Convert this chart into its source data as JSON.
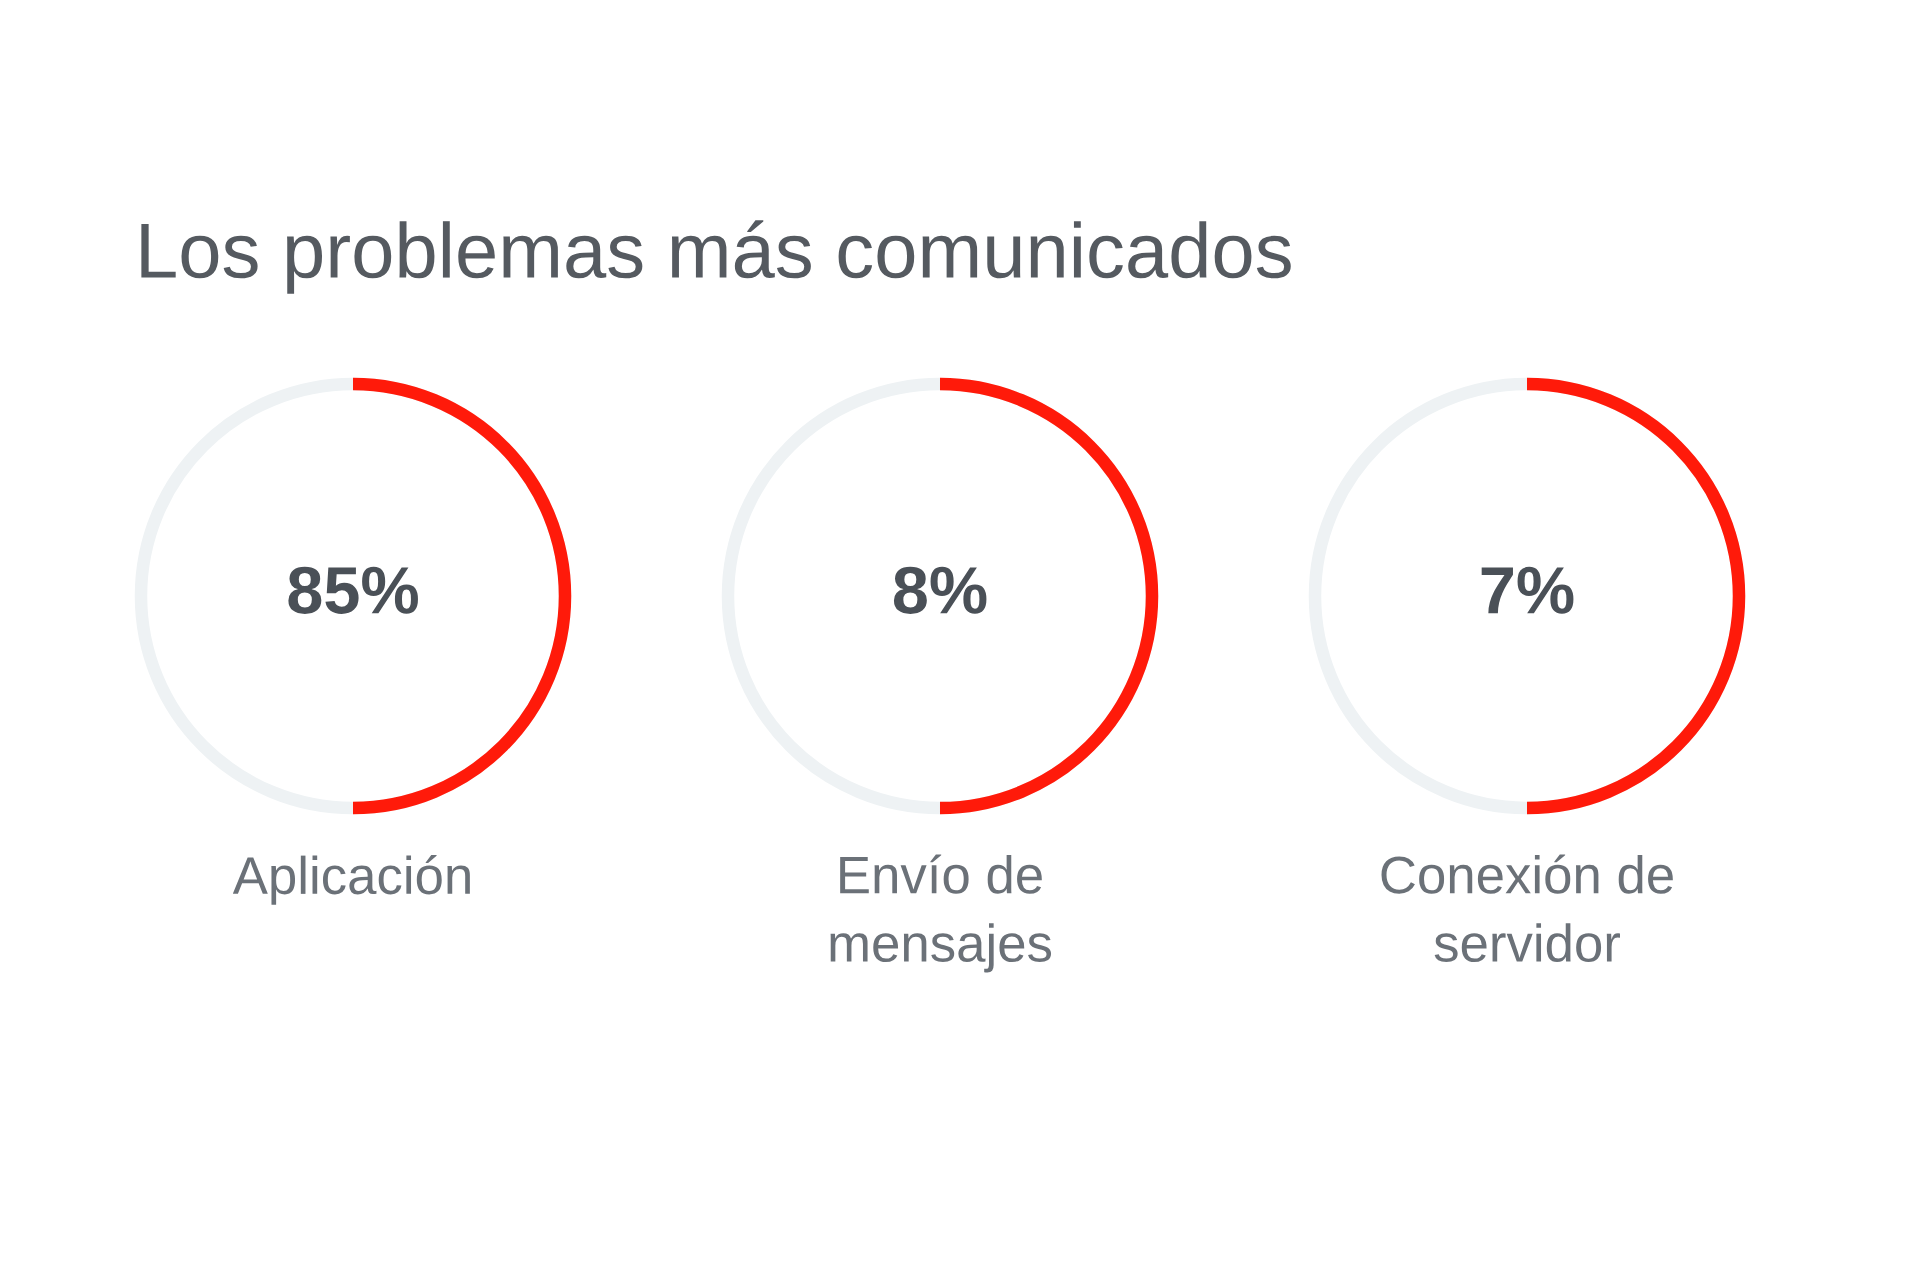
{
  "chart_data": {
    "type": "other",
    "title": "Los problemas más comunicados",
    "categories": [
      "Aplicación",
      "Envío de mensajes",
      "Conexión de servidor"
    ],
    "values": [
      85,
      8,
      7
    ],
    "value_labels": [
      "85%",
      "8%",
      "7%"
    ],
    "color": "#ff1a0a"
  }
}
